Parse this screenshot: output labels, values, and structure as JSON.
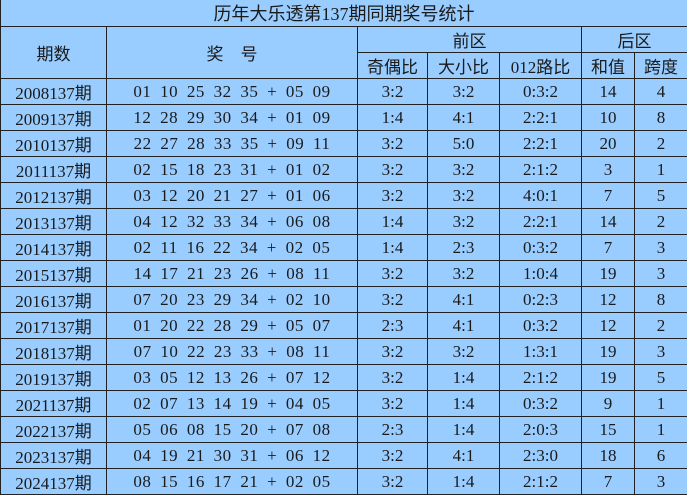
{
  "title": "历年大乐透第137期同期奖号统计",
  "headers": {
    "period": "期数",
    "numbers": "奖　号",
    "front_zone": "前区",
    "back_zone": "后区",
    "odd_even": "奇偶比",
    "big_small": "大小比",
    "road_012": "012路比",
    "sum": "和值",
    "span": "跨度"
  },
  "colors": {
    "background": "#99ccff",
    "border": "#222222"
  },
  "rows": [
    {
      "period": "2008137期",
      "numbers": "01 10 25 32 35 + 05 09",
      "odd_even": "3:2",
      "big_small": "3:2",
      "road_012": "0:3:2",
      "sum": "14",
      "span": "4"
    },
    {
      "period": "2009137期",
      "numbers": "12 28 29 30 34 + 01 09",
      "odd_even": "1:4",
      "big_small": "4:1",
      "road_012": "2:2:1",
      "sum": "10",
      "span": "8"
    },
    {
      "period": "2010137期",
      "numbers": "22 27 28 33 35 + 09 11",
      "odd_even": "3:2",
      "big_small": "5:0",
      "road_012": "2:2:1",
      "sum": "20",
      "span": "2"
    },
    {
      "period": "2011137期",
      "numbers": "02 15 18 23 31 + 01 02",
      "odd_even": "3:2",
      "big_small": "3:2",
      "road_012": "2:1:2",
      "sum": "3",
      "span": "1"
    },
    {
      "period": "2012137期",
      "numbers": "03 12 20 21 27 + 01 06",
      "odd_even": "3:2",
      "big_small": "3:2",
      "road_012": "4:0:1",
      "sum": "7",
      "span": "5"
    },
    {
      "period": "2013137期",
      "numbers": "04 12 32 33 34 + 06 08",
      "odd_even": "1:4",
      "big_small": "3:2",
      "road_012": "2:2:1",
      "sum": "14",
      "span": "2"
    },
    {
      "period": "2014137期",
      "numbers": "02 11 16 22 34 + 02 05",
      "odd_even": "1:4",
      "big_small": "2:3",
      "road_012": "0:3:2",
      "sum": "7",
      "span": "3"
    },
    {
      "period": "2015137期",
      "numbers": "14 17 21 23 26 + 08 11",
      "odd_even": "3:2",
      "big_small": "3:2",
      "road_012": "1:0:4",
      "sum": "19",
      "span": "3"
    },
    {
      "period": "2016137期",
      "numbers": "07 20 23 29 34 + 02 10",
      "odd_even": "3:2",
      "big_small": "4:1",
      "road_012": "0:2:3",
      "sum": "12",
      "span": "8"
    },
    {
      "period": "2017137期",
      "numbers": "01 20 22 28 29 + 05 07",
      "odd_even": "2:3",
      "big_small": "4:1",
      "road_012": "0:3:2",
      "sum": "12",
      "span": "2"
    },
    {
      "period": "2018137期",
      "numbers": "07 10 22 23 33 + 08 11",
      "odd_even": "3:2",
      "big_small": "3:2",
      "road_012": "1:3:1",
      "sum": "19",
      "span": "3"
    },
    {
      "period": "2019137期",
      "numbers": "03 05 12 13 26 + 07 12",
      "odd_even": "3:2",
      "big_small": "1:4",
      "road_012": "2:1:2",
      "sum": "19",
      "span": "5"
    },
    {
      "period": "2021137期",
      "numbers": "02 07 13 14 19 + 04 05",
      "odd_even": "3:2",
      "big_small": "1:4",
      "road_012": "0:3:2",
      "sum": "9",
      "span": "1"
    },
    {
      "period": "2022137期",
      "numbers": "05 06 08 15 20 + 07 08",
      "odd_even": "2:3",
      "big_small": "1:4",
      "road_012": "2:0:3",
      "sum": "15",
      "span": "1"
    },
    {
      "period": "2023137期",
      "numbers": "04 19 21 30 31 + 06 12",
      "odd_even": "3:2",
      "big_small": "4:1",
      "road_012": "2:3:0",
      "sum": "18",
      "span": "6"
    },
    {
      "period": "2024137期",
      "numbers": "08 15 16 17 21 + 02 05",
      "odd_even": "3:2",
      "big_small": "1:4",
      "road_012": "2:1:2",
      "sum": "7",
      "span": "3"
    }
  ]
}
